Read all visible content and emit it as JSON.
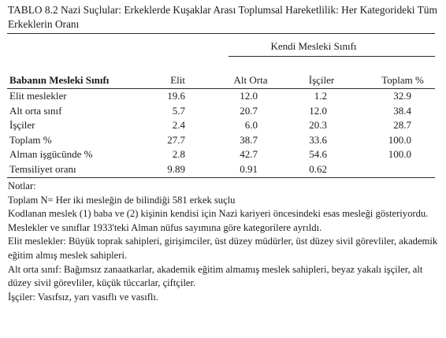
{
  "caption": {
    "prefix": "TABLO 8.2",
    "title": "Nazi Suçlular: Erkeklerde Kuşaklar Arası Toplumsal Hareketlilik: Her Kategorideki Tüm Erkeklerin Oranı"
  },
  "table": {
    "group_header": "Kendi Mesleki Sınıfı",
    "row_header": "Babanın Mesleki Sınıfı",
    "columns": [
      "Elit",
      "Alt Orta",
      "İşçiler",
      "Toplam %"
    ],
    "rows": [
      {
        "label": "Elit meslekler",
        "values": [
          "19.6",
          "12.0",
          "1.2",
          "32.9"
        ]
      },
      {
        "label": "Alt orta sınıf",
        "values": [
          "5.7",
          "20.7",
          "12.0",
          "38.4"
        ]
      },
      {
        "label": "İşçiler",
        "values": [
          "2.4",
          "6.0",
          "20.3",
          "28.7"
        ]
      },
      {
        "label": "Toplam %",
        "values": [
          "27.7",
          "38.7",
          "33.6",
          "100.0"
        ]
      },
      {
        "label": "Alman işgücünde %",
        "values": [
          "2.8",
          "42.7",
          "54.6",
          "100.0"
        ]
      },
      {
        "label": "Temsiliyet oranı",
        "values": [
          "9.89",
          "0.91",
          "0.62",
          ""
        ]
      }
    ]
  },
  "notes": {
    "heading": "Notlar:",
    "lines": [
      "Toplam N= Her iki mesleğin de bilindiği 581 erkek suçlu",
      "Kodlanan meslek (1) baba ve (2) kişinin kendisi için Nazi kariyeri öncesindeki esas mesleği gösteriyordu. Meslekler ve sınıflar 1933'teki Alman nüfus sayımına göre kategorilere ayrıldı.",
      "Elit meslekler: Büyük toprak sahipleri, girişimciler, üst düzey müdürler, üst düzey sivil görevliler, akademik eğitim almış meslek sahipleri.",
      "Alt orta sınıf: Bağımsız zanaatkarlar, akademik eğitim almamış meslek sahipleri, beyaz yakalı işçiler, alt düzey sivil görevliler, küçük tüccarlar, çiftçiler.",
      "İşçiler: Vasıfsız, yarı vasıflı ve vasıflı."
    ]
  }
}
